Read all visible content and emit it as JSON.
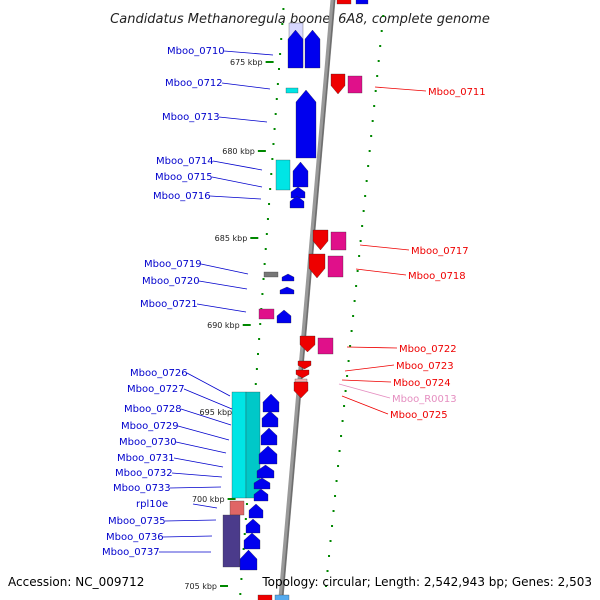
{
  "title": "Candidatus Methanoregula boonei 6A8, complete genome",
  "footer": {
    "accession": "Accession: NC_009712",
    "topology": "Topology: circular; Length: 2,542,943 bp; Genes: 2,503"
  },
  "colors": {
    "cds_forward": "#0000ee",
    "cds_reverse": "#ee0000",
    "rrna": "#00e5e5",
    "trna": "#e0108a",
    "pseudo": "#777777",
    "ribosomal": "#e06666",
    "operon": "#4b3b8b",
    "ncrna_label": "#e58ec0",
    "ruler_tick": "#008800"
  },
  "ruler": [
    "675 kbp",
    "680 kbp",
    "685 kbp",
    "690 kbp",
    "695 kbp",
    "700 kbp",
    "705 kbp"
  ],
  "left_labels": [
    "Mboo_0710",
    "Mboo_0712",
    "Mboo_0713",
    "Mboo_0714",
    "Mboo_0715",
    "Mboo_0716",
    "Mboo_0719",
    "Mboo_0720",
    "Mboo_0721",
    "Mboo_0726",
    "Mboo_0727",
    "Mboo_0728",
    "Mboo_0729",
    "Mboo_0730",
    "Mboo_0731",
    "Mboo_0732",
    "Mboo_0733",
    "rpl10e",
    "Mboo_0735",
    "Mboo_0736",
    "Mboo_0737"
  ],
  "right_labels": [
    "Mboo_0711",
    "Mboo_0717",
    "Mboo_0718",
    "Mboo_0722",
    "Mboo_0723",
    "Mboo_0724",
    "Mboo_R0013",
    "Mboo_0725"
  ]
}
